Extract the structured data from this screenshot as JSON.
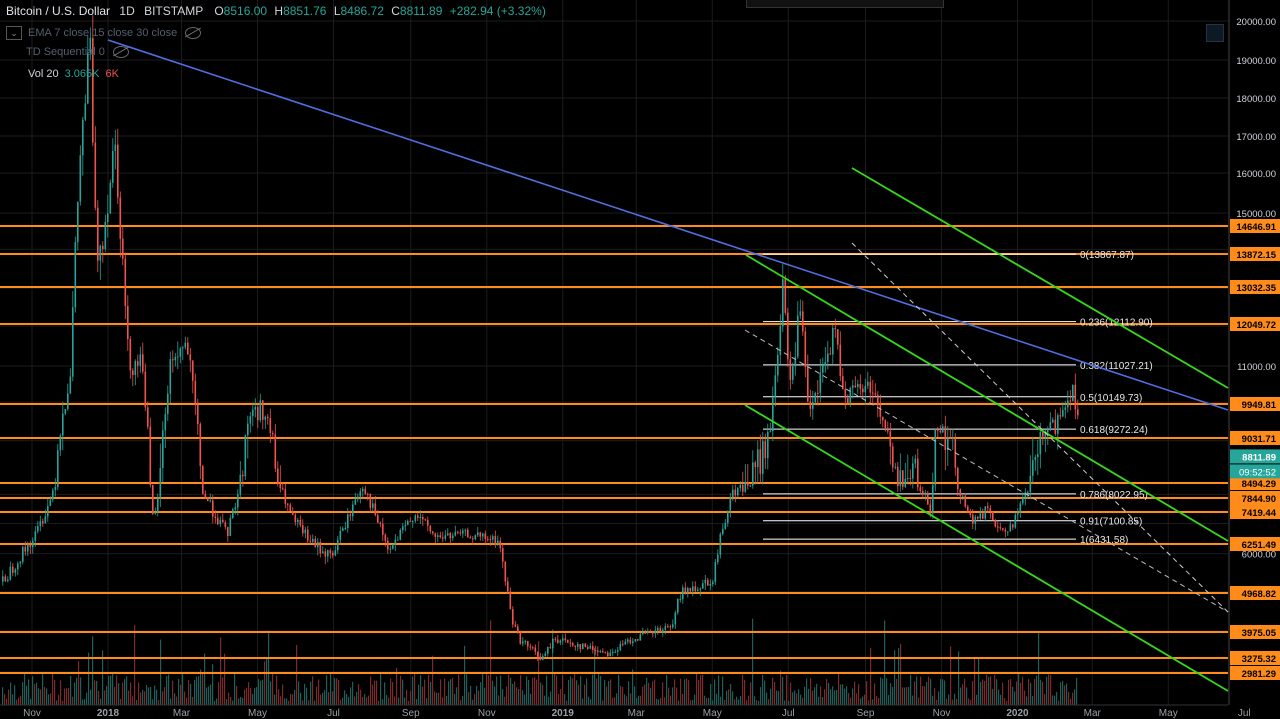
{
  "header": {
    "symbol": "Bitcoin / U.S. Dollar",
    "interval": "1D",
    "exchange": "BITSTAMP",
    "o_label": "O",
    "o_value": "8516.00",
    "h_label": "H",
    "h_value": "8851.76",
    "l_label": "L",
    "l_value": "8486.72",
    "c_label": "C",
    "c_value": "8811.89",
    "change": "+282.94 (+3.32%)"
  },
  "indicators": [
    {
      "text": "EMA 7 close 15 close 30 close"
    },
    {
      "text": "TD Sequential 0"
    }
  ],
  "volume": {
    "label": "Vol 20",
    "v1": "3.065K",
    "v2": "6K"
  },
  "colors": {
    "background": "#000000",
    "grid": "#1c1c1c",
    "horizontal_levels": "#ff8c1a",
    "trendline": "#4f6fe0",
    "channel": "#36d81a",
    "fib": "#ffffff",
    "up": "#26a69a",
    "down": "#ef5350"
  },
  "chart_data": {
    "type": "candlestick",
    "series": "BTCUSD daily, BITSTAMP",
    "price_axis_ticks": [
      "20000.00",
      "19000.00",
      "18000.00",
      "17000.00",
      "16000.00",
      "15000.00",
      "11000.00",
      "6000.00"
    ],
    "level_labels": [
      "14646.91",
      "13872.15",
      "13032.35",
      "12049.72",
      "9949.81",
      "9031.71",
      "8494.29",
      "7844.90",
      "7419.44",
      "6251.49",
      "4968.82",
      "3975.05",
      "3275.32",
      "2981.29"
    ],
    "levels": [
      14646.91,
      13872.15,
      13032.35,
      12049.72,
      9949.81,
      9031.71,
      8494.29,
      7844.9,
      7419.44,
      6251.49,
      4968.82,
      3975.05,
      3275.32,
      2981.29
    ],
    "last_price_label": "8811.89",
    "countdown_label": "09:52:52",
    "fib_retracement": [
      {
        "text": "0(13867.87)",
        "value": 13867.87
      },
      {
        "text": "0.236(12112.90)",
        "value": 12112.9
      },
      {
        "text": "0.382(11027.21)",
        "value": 11027.21
      },
      {
        "text": "0.5(10149.73)",
        "value": 10149.73
      },
      {
        "text": "0.618(9272.24)",
        "value": 9272.24
      },
      {
        "text": "0.786(8022.95)",
        "value": 8022.95
      },
      {
        "text": "0.91(7100.85)",
        "value": 7100.85
      },
      {
        "text": "1(6431.58)",
        "value": 6431.58
      }
    ],
    "time_axis_labels": [
      "Nov",
      "2018",
      "Mar",
      "May",
      "Jul",
      "Sep",
      "Nov",
      "2019",
      "Mar",
      "May",
      "Jul",
      "Sep",
      "Nov",
      "2020",
      "Mar",
      "May",
      "Jul"
    ],
    "price_path": [
      [
        "2017-10-15",
        5600
      ],
      [
        "2017-11-01",
        6400
      ],
      [
        "2017-11-15",
        7800
      ],
      [
        "2017-12-01",
        10800
      ],
      [
        "2017-12-08",
        16000
      ],
      [
        "2017-12-17",
        19500
      ],
      [
        "2017-12-22",
        13800
      ],
      [
        "2017-12-28",
        14500
      ],
      [
        "2018-01-06",
        17000
      ],
      [
        "2018-01-17",
        11000
      ],
      [
        "2018-01-28",
        11200
      ],
      [
        "2018-02-06",
        6900
      ],
      [
        "2018-02-20",
        11200
      ],
      [
        "2018-03-05",
        11500
      ],
      [
        "2018-03-18",
        8000
      ],
      [
        "2018-04-06",
        6600
      ],
      [
        "2018-04-24",
        9700
      ],
      [
        "2018-05-05",
        9800
      ],
      [
        "2018-05-28",
        7200
      ],
      [
        "2018-06-13",
        6300
      ],
      [
        "2018-06-29",
        5900
      ],
      [
        "2018-07-24",
        8400
      ],
      [
        "2018-08-14",
        6000
      ],
      [
        "2018-09-04",
        7400
      ],
      [
        "2018-09-20",
        6500
      ],
      [
        "2018-10-15",
        6600
      ],
      [
        "2018-11-10",
        6350
      ],
      [
        "2018-11-20",
        4400
      ],
      [
        "2018-11-26",
        3800
      ],
      [
        "2018-12-15",
        3250
      ],
      [
        "2018-12-25",
        3800
      ],
      [
        "2019-01-15",
        3600
      ],
      [
        "2019-02-08",
        3400
      ],
      [
        "2019-02-25",
        3800
      ],
      [
        "2019-03-31",
        4100
      ],
      [
        "2019-04-02",
        4900
      ],
      [
        "2019-05-01",
        5350
      ],
      [
        "2019-05-15",
        8000
      ],
      [
        "2019-05-31",
        8500
      ],
      [
        "2019-06-15",
        9000
      ],
      [
        "2019-06-26",
        12900
      ],
      [
        "2019-07-02",
        10500
      ],
      [
        "2019-07-10",
        12500
      ],
      [
        "2019-07-17",
        9500
      ],
      [
        "2019-08-06",
        11900
      ],
      [
        "2019-08-15",
        10200
      ],
      [
        "2019-09-05",
        10500
      ],
      [
        "2019-09-24",
        8500
      ],
      [
        "2019-10-10",
        8600
      ],
      [
        "2019-10-23",
        7500
      ],
      [
        "2019-10-26",
        9500
      ],
      [
        "2019-11-10",
        8800
      ],
      [
        "2019-11-25",
        7000
      ],
      [
        "2019-12-08",
        7500
      ],
      [
        "2019-12-18",
        6600
      ],
      [
        "2019-12-31",
        7200
      ],
      [
        "2020-01-14",
        8800
      ],
      [
        "2020-01-31",
        9400
      ],
      [
        "2020-02-13",
        10400
      ],
      [
        "2020-02-20",
        9600
      ],
      [
        "2020-02-26",
        8800
      ],
      [
        "2020-03-01",
        8700
      ]
    ]
  }
}
